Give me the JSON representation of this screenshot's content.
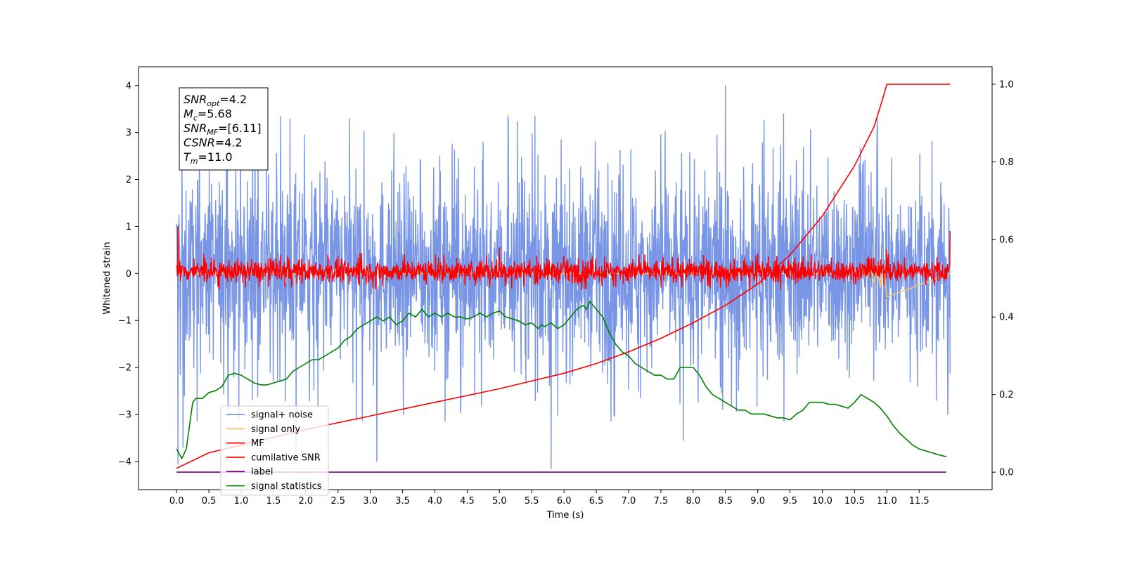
{
  "chart_data": {
    "type": "line",
    "xlabel": "Time (s)",
    "ylabel": "Whitened strain",
    "xlim": [
      -0.59,
      12.63
    ],
    "ylim": [
      -4.6,
      4.4
    ],
    "y2lim": [
      -0.045,
      1.045
    ],
    "x_ticks": [
      "0.0",
      "0.5",
      "1.0",
      "1.5",
      "2.0",
      "2.5",
      "3.0",
      "3.5",
      "4.0",
      "4.5",
      "5.0",
      "5.5",
      "6.0",
      "6.5",
      "7.0",
      "7.5",
      "8.0",
      "8.5",
      "9.0",
      "9.5",
      "10.0",
      "10.5",
      "11.0",
      "11.5"
    ],
    "y_ticks": [
      "-4",
      "-3",
      "-2",
      "-1",
      "0",
      "1",
      "2",
      "3",
      "4"
    ],
    "y2_ticks": [
      "0.0",
      "0.2",
      "0.4",
      "0.6",
      "0.8",
      "1.0"
    ],
    "grid": false,
    "legend_position": "lower-left",
    "annotation": {
      "lines": [
        {
          "var": "SNR",
          "sub": "opt",
          "value": "=4.2"
        },
        {
          "var": "M",
          "sub": "c",
          "value": "=5.68"
        },
        {
          "var": "SNR",
          "sub": "MF",
          "value": "=[6.11]"
        },
        {
          "var": "CSNR",
          "sub": "",
          "value": "=4.2"
        },
        {
          "var": "T",
          "sub": "m",
          "value": "=11.0"
        }
      ]
    },
    "series": [
      {
        "name": "signal+ noise",
        "color": "#7895e6",
        "axis": "left",
        "x_range": [
          0,
          11.98
        ],
        "samples": 2300,
        "typical_range": [
          -2.0,
          2.2
        ],
        "extremes": [
          {
            "x": 8.5,
            "y": 4.0
          },
          {
            "x": 5.8,
            "y": -4.15
          },
          {
            "x": 0.02,
            "y": -4.05
          },
          {
            "x": 3.1,
            "y": -4.0
          },
          {
            "x": 0.1,
            "y": -3.7
          },
          {
            "x": 5.55,
            "y": 3.35
          },
          {
            "x": 9.4,
            "y": 3.4
          },
          {
            "x": 1.85,
            "y": -3.8
          },
          {
            "x": 7.85,
            "y": -3.55
          },
          {
            "x": 10.85,
            "y": 3.3
          }
        ]
      },
      {
        "name": "signal only",
        "color": "#f7c873",
        "axis": "left",
        "x": [
          0,
          10.5,
          10.6,
          10.7,
          10.75,
          10.8,
          10.85,
          10.9,
          10.95,
          11.0,
          11.98
        ],
        "y": [
          0,
          0,
          0.05,
          -0.1,
          0.15,
          -0.2,
          0.1,
          -0.3,
          0.2,
          -0.5,
          0
        ]
      },
      {
        "name": "MF",
        "color": "#ff0000",
        "axis": "left",
        "x_range": [
          0,
          11.98
        ],
        "samples": 2000,
        "typical_range": [
          -0.2,
          0.3
        ],
        "extremes": [
          {
            "x": 0.02,
            "y": 1.0
          },
          {
            "x": 11.0,
            "y": 0.5
          },
          {
            "x": 11.98,
            "y": 0.9
          },
          {
            "x": 5.0,
            "y": 0.55
          }
        ]
      },
      {
        "name": "cumilative SNR",
        "color": "#ff0000",
        "axis": "right",
        "x": [
          0,
          0.5,
          1,
          2,
          3,
          4,
          5,
          6,
          6.5,
          7,
          7.5,
          8,
          8.5,
          9,
          9.5,
          10,
          10.5,
          10.8,
          10.95,
          11.0,
          11.98
        ],
        "y": [
          0.01,
          0.05,
          0.07,
          0.11,
          0.145,
          0.18,
          0.215,
          0.255,
          0.28,
          0.31,
          0.345,
          0.385,
          0.43,
          0.485,
          0.56,
          0.66,
          0.79,
          0.89,
          0.97,
          1.0,
          1.0
        ]
      },
      {
        "name": "label",
        "color": "#800080",
        "axis": "right",
        "x": [
          0,
          11.92
        ],
        "y": [
          0,
          0
        ]
      },
      {
        "name": "signal statistics",
        "color": "#008000",
        "axis": "right",
        "x": [
          0,
          0.08,
          0.15,
          0.25,
          0.3,
          0.4,
          0.5,
          0.6,
          0.7,
          0.8,
          0.9,
          1.0,
          1.1,
          1.2,
          1.3,
          1.4,
          1.5,
          1.6,
          1.7,
          1.8,
          1.9,
          2.0,
          2.1,
          2.2,
          2.3,
          2.4,
          2.5,
          2.6,
          2.7,
          2.8,
          2.9,
          3.0,
          3.1,
          3.2,
          3.3,
          3.4,
          3.5,
          3.6,
          3.7,
          3.8,
          3.9,
          4.0,
          4.1,
          4.2,
          4.3,
          4.4,
          4.5,
          4.6,
          4.7,
          4.8,
          4.9,
          5.0,
          5.1,
          5.2,
          5.3,
          5.4,
          5.5,
          5.6,
          5.65,
          5.7,
          5.8,
          5.9,
          6.0,
          6.1,
          6.2,
          6.3,
          6.35,
          6.4,
          6.5,
          6.6,
          6.7,
          6.8,
          6.9,
          7.0,
          7.1,
          7.2,
          7.3,
          7.4,
          7.5,
          7.6,
          7.7,
          7.8,
          7.9,
          8.0,
          8.1,
          8.2,
          8.3,
          8.4,
          8.5,
          8.6,
          8.7,
          8.8,
          8.9,
          9.0,
          9.1,
          9.2,
          9.3,
          9.4,
          9.5,
          9.6,
          9.7,
          9.8,
          9.9,
          10.0,
          10.1,
          10.2,
          10.3,
          10.4,
          10.5,
          10.6,
          10.7,
          10.8,
          10.9,
          11.0,
          11.1,
          11.2,
          11.3,
          11.4,
          11.5,
          11.6,
          11.7,
          11.8,
          11.92
        ],
        "y": [
          0.06,
          0.035,
          0.06,
          0.18,
          0.19,
          0.19,
          0.205,
          0.21,
          0.22,
          0.25,
          0.255,
          0.25,
          0.24,
          0.23,
          0.225,
          0.225,
          0.23,
          0.235,
          0.24,
          0.26,
          0.27,
          0.28,
          0.29,
          0.29,
          0.3,
          0.31,
          0.32,
          0.34,
          0.35,
          0.37,
          0.38,
          0.39,
          0.4,
          0.39,
          0.4,
          0.38,
          0.39,
          0.41,
          0.4,
          0.42,
          0.4,
          0.41,
          0.4,
          0.41,
          0.4,
          0.4,
          0.395,
          0.4,
          0.41,
          0.4,
          0.41,
          0.415,
          0.4,
          0.395,
          0.39,
          0.38,
          0.385,
          0.37,
          0.38,
          0.375,
          0.385,
          0.37,
          0.38,
          0.4,
          0.42,
          0.43,
          0.42,
          0.44,
          0.42,
          0.4,
          0.36,
          0.33,
          0.31,
          0.3,
          0.28,
          0.27,
          0.26,
          0.25,
          0.25,
          0.24,
          0.24,
          0.27,
          0.27,
          0.27,
          0.25,
          0.22,
          0.2,
          0.19,
          0.18,
          0.17,
          0.16,
          0.16,
          0.15,
          0.15,
          0.15,
          0.145,
          0.14,
          0.14,
          0.135,
          0.15,
          0.16,
          0.18,
          0.18,
          0.18,
          0.175,
          0.175,
          0.17,
          0.165,
          0.18,
          0.2,
          0.19,
          0.18,
          0.165,
          0.145,
          0.12,
          0.1,
          0.085,
          0.07,
          0.06,
          0.055,
          0.05,
          0.045,
          0.04
        ]
      }
    ]
  }
}
